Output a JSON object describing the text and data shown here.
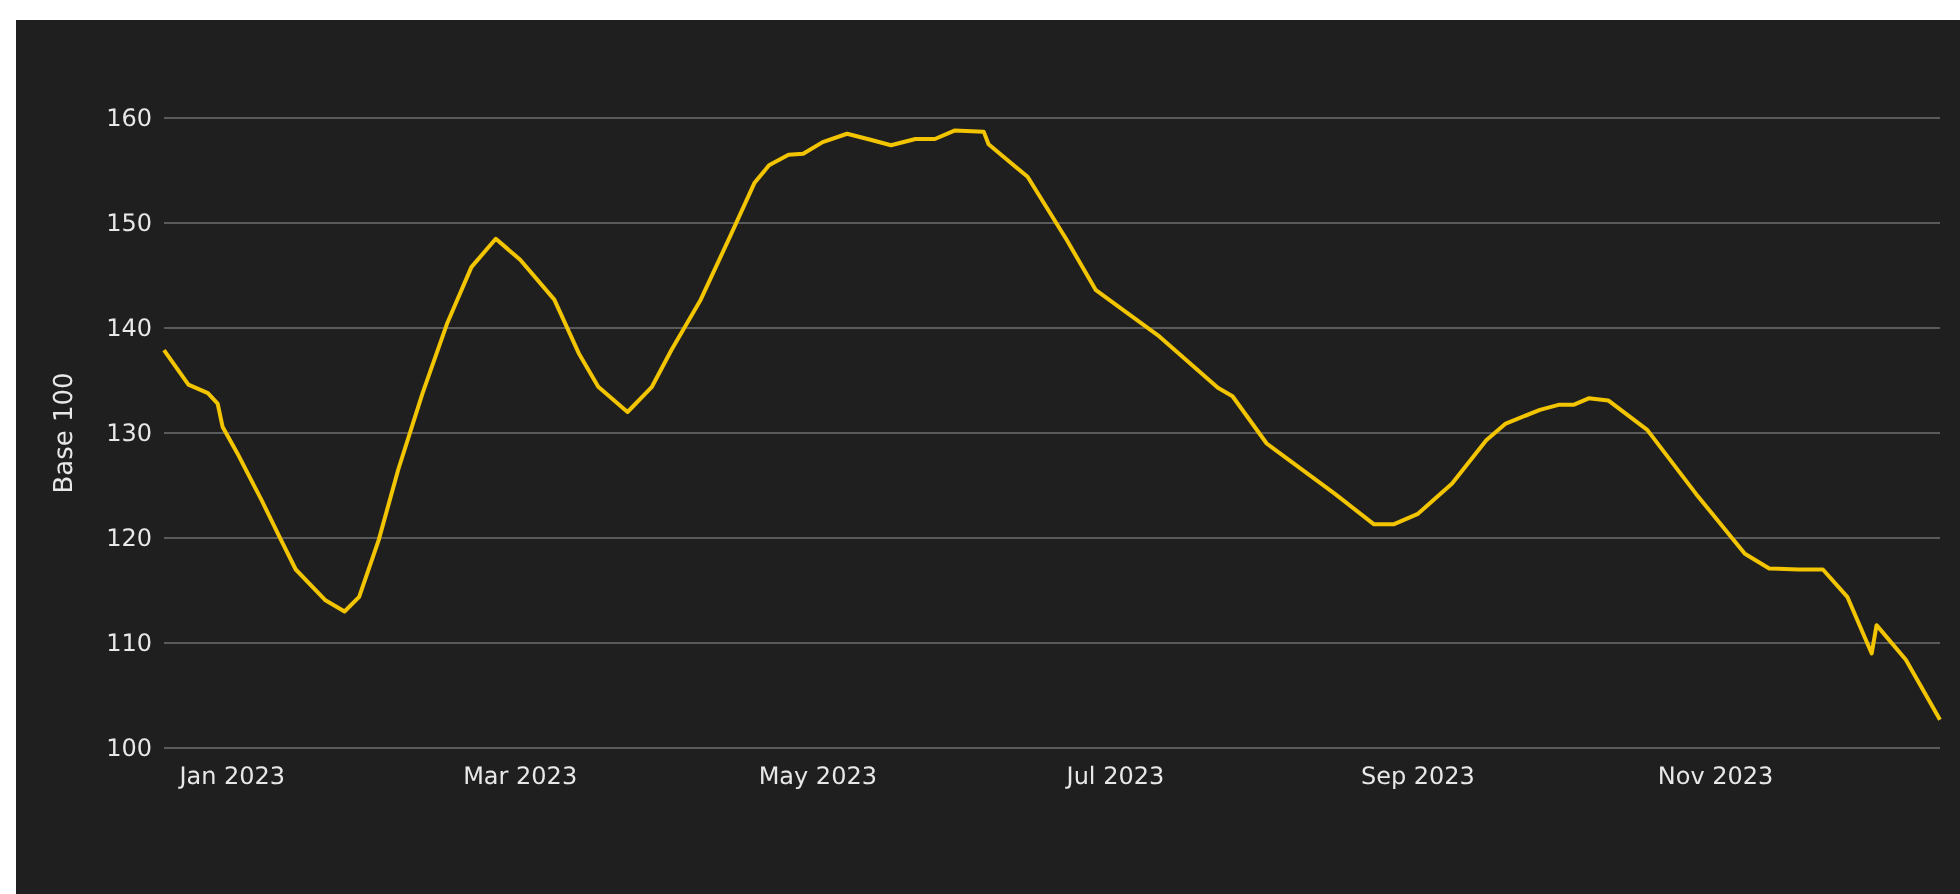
{
  "chart_data": {
    "type": "line",
    "ylabel": "Base 100",
    "x": [
      "2022-12-18",
      "2022-12-23",
      "2022-12-27",
      "2022-12-29",
      "2022-12-30",
      "2023-01-02",
      "2023-01-07",
      "2023-01-11",
      "2023-01-14",
      "2023-01-20",
      "2023-01-24",
      "2023-01-27",
      "2023-01-31",
      "2023-02-04",
      "2023-02-09",
      "2023-02-14",
      "2023-02-19",
      "2023-02-24",
      "2023-03-01",
      "2023-03-08",
      "2023-03-13",
      "2023-03-17",
      "2023-03-23",
      "2023-03-28",
      "2023-04-01",
      "2023-04-07",
      "2023-04-13",
      "2023-04-18",
      "2023-04-21",
      "2023-04-25",
      "2023-04-28",
      "2023-05-02",
      "2023-05-07",
      "2023-05-12",
      "2023-05-16",
      "2023-05-21",
      "2023-05-25",
      "2023-05-29",
      "2023-06-04",
      "2023-06-05",
      "2023-06-13",
      "2023-06-21",
      "2023-06-27",
      "2023-07-10",
      "2023-07-22",
      "2023-07-25",
      "2023-08-01",
      "2023-08-15",
      "2023-08-23",
      "2023-08-27",
      "2023-09-01",
      "2023-09-08",
      "2023-09-15",
      "2023-09-19",
      "2023-09-26",
      "2023-09-30",
      "2023-10-03",
      "2023-10-06",
      "2023-10-10",
      "2023-10-18",
      "2023-10-28",
      "2023-11-07",
      "2023-11-12",
      "2023-11-18",
      "2023-11-23",
      "2023-11-28",
      "2023-12-03",
      "2023-12-04",
      "2023-12-10",
      "2023-12-17"
    ],
    "series": [
      {
        "color": "#f2c500",
        "values": [
          137.9,
          134.6,
          133.8,
          132.8,
          130.6,
          128.1,
          123.6,
          119.8,
          117.0,
          114.1,
          113.0,
          114.4,
          119.8,
          126.5,
          133.8,
          140.4,
          145.8,
          148.5,
          146.5,
          142.7,
          137.6,
          134.4,
          132.0,
          134.4,
          137.9,
          142.7,
          148.7,
          153.8,
          155.5,
          156.5,
          156.6,
          157.7,
          158.5,
          157.9,
          157.4,
          158.0,
          158.0,
          158.8,
          158.7,
          157.5,
          154.4,
          148.4,
          143.6,
          139.2,
          134.3,
          133.5,
          129.0,
          124.2,
          121.3,
          121.3,
          122.3,
          125.2,
          129.3,
          130.9,
          132.2,
          132.7,
          132.7,
          133.3,
          133.1,
          130.3,
          124.2,
          118.5,
          117.1,
          117.0,
          117.0,
          114.4,
          109.0,
          111.7,
          108.4,
          102.7
        ]
      }
    ],
    "xlim": [
      "2022-12-18",
      "2023-12-17"
    ],
    "xticks": [
      {
        "value": "2023-01-01",
        "label": "Jan 2023"
      },
      {
        "value": "2023-03-01",
        "label": "Mar 2023"
      },
      {
        "value": "2023-05-01",
        "label": "May 2023"
      },
      {
        "value": "2023-07-01",
        "label": "Jul 2023"
      },
      {
        "value": "2023-09-01",
        "label": "Sep 2023"
      },
      {
        "value": "2023-11-01",
        "label": "Nov 2023"
      }
    ],
    "ylim": [
      100,
      160
    ],
    "yticks": [
      100,
      110,
      120,
      130,
      140,
      150,
      160
    ],
    "grid": "y",
    "marker": "none",
    "line_style": "solid"
  }
}
